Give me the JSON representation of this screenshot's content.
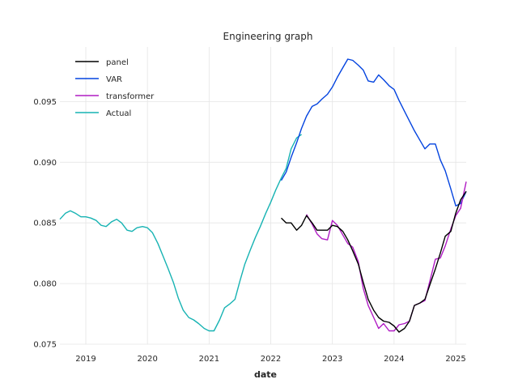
{
  "chart_data": {
    "type": "line",
    "title": "Engineering graph",
    "xlabel": "date",
    "ylabel": "",
    "xlim": [
      2018.58,
      2025.17
    ],
    "ylim": [
      0.075,
      0.0995
    ],
    "x_ticks": [
      2019,
      2020,
      2021,
      2022,
      2023,
      2024,
      2025
    ],
    "x_tick_labels": [
      "2019",
      "2020",
      "2021",
      "2022",
      "2023",
      "2024",
      "2025"
    ],
    "y_ticks": [
      0.075,
      0.08,
      0.085,
      0.09,
      0.095
    ],
    "y_tick_labels": [
      "0.075",
      "0.080",
      "0.085",
      "0.090",
      "0.095"
    ],
    "grid": true,
    "legend_position": "top-left",
    "series": [
      {
        "name": "panel",
        "color": "#000000",
        "points": [
          [
            2022.17,
            0.0854
          ],
          [
            2022.25,
            0.085
          ],
          [
            2022.33,
            0.085
          ],
          [
            2022.42,
            0.0844
          ],
          [
            2022.5,
            0.0848
          ],
          [
            2022.58,
            0.0856
          ],
          [
            2022.67,
            0.085
          ],
          [
            2022.75,
            0.0844
          ],
          [
            2022.83,
            0.0844
          ],
          [
            2022.92,
            0.0844
          ],
          [
            2023.0,
            0.0848
          ],
          [
            2023.08,
            0.0847
          ],
          [
            2023.17,
            0.0843
          ],
          [
            2023.25,
            0.0836
          ],
          [
            2023.33,
            0.0827
          ],
          [
            2023.42,
            0.0816
          ],
          [
            2023.5,
            0.0801
          ],
          [
            2023.58,
            0.0787
          ],
          [
            2023.67,
            0.0778
          ],
          [
            2023.75,
            0.0772
          ],
          [
            2023.83,
            0.0769
          ],
          [
            2023.92,
            0.0768
          ],
          [
            2024.0,
            0.0765
          ],
          [
            2024.08,
            0.076
          ],
          [
            2024.17,
            0.0763
          ],
          [
            2024.25,
            0.0769
          ],
          [
            2024.33,
            0.0782
          ],
          [
            2024.42,
            0.0784
          ],
          [
            2024.5,
            0.0787
          ],
          [
            2024.58,
            0.0799
          ],
          [
            2024.67,
            0.0812
          ],
          [
            2024.75,
            0.0825
          ],
          [
            2024.83,
            0.0839
          ],
          [
            2024.92,
            0.0843
          ],
          [
            2025.0,
            0.0858
          ],
          [
            2025.08,
            0.0869
          ],
          [
            2025.17,
            0.0876
          ]
        ]
      },
      {
        "name": "VAR",
        "color": "#0343df",
        "points": [
          [
            2022.17,
            0.0885
          ],
          [
            2022.25,
            0.0892
          ],
          [
            2022.33,
            0.0904
          ],
          [
            2022.42,
            0.0916
          ],
          [
            2022.5,
            0.0928
          ],
          [
            2022.58,
            0.0938
          ],
          [
            2022.67,
            0.0946
          ],
          [
            2022.75,
            0.0948
          ],
          [
            2022.83,
            0.0952
          ],
          [
            2022.92,
            0.0956
          ],
          [
            2023.0,
            0.0962
          ],
          [
            2023.08,
            0.097
          ],
          [
            2023.17,
            0.0978
          ],
          [
            2023.25,
            0.0985
          ],
          [
            2023.33,
            0.0984
          ],
          [
            2023.42,
            0.098
          ],
          [
            2023.5,
            0.0976
          ],
          [
            2023.58,
            0.0967
          ],
          [
            2023.67,
            0.0966
          ],
          [
            2023.75,
            0.0972
          ],
          [
            2023.83,
            0.0968
          ],
          [
            2023.92,
            0.0963
          ],
          [
            2024.0,
            0.096
          ],
          [
            2024.08,
            0.0951
          ],
          [
            2024.17,
            0.0942
          ],
          [
            2024.25,
            0.0934
          ],
          [
            2024.33,
            0.0926
          ],
          [
            2024.42,
            0.0918
          ],
          [
            2024.5,
            0.0911
          ],
          [
            2024.58,
            0.0915
          ],
          [
            2024.67,
            0.0915
          ],
          [
            2024.75,
            0.0902
          ],
          [
            2024.83,
            0.0893
          ],
          [
            2024.92,
            0.0878
          ],
          [
            2025.0,
            0.0864
          ],
          [
            2025.08,
            0.0866
          ],
          [
            2025.17,
            0.0876
          ]
        ]
      },
      {
        "name": "transformer",
        "color": "#b01cc4",
        "points": [
          [
            2022.58,
            0.0857
          ],
          [
            2022.67,
            0.0849
          ],
          [
            2022.75,
            0.0841
          ],
          [
            2022.83,
            0.0837
          ],
          [
            2022.92,
            0.0836
          ],
          [
            2023.0,
            0.0852
          ],
          [
            2023.08,
            0.0848
          ],
          [
            2023.17,
            0.084
          ],
          [
            2023.25,
            0.0833
          ],
          [
            2023.33,
            0.083
          ],
          [
            2023.42,
            0.0818
          ],
          [
            2023.5,
            0.0796
          ],
          [
            2023.58,
            0.0782
          ],
          [
            2023.67,
            0.0772
          ],
          [
            2023.75,
            0.0763
          ],
          [
            2023.83,
            0.0767
          ],
          [
            2023.92,
            0.0761
          ],
          [
            2024.0,
            0.0761
          ],
          [
            2024.08,
            0.0766
          ],
          [
            2024.17,
            0.0767
          ],
          [
            2024.25,
            0.0769
          ],
          [
            2024.33,
            0.0782
          ],
          [
            2024.42,
            0.0784
          ],
          [
            2024.5,
            0.0786
          ],
          [
            2024.58,
            0.0802
          ],
          [
            2024.67,
            0.082
          ],
          [
            2024.75,
            0.0821
          ],
          [
            2024.83,
            0.0831
          ],
          [
            2024.92,
            0.0845
          ],
          [
            2025.0,
            0.0856
          ],
          [
            2025.08,
            0.0862
          ],
          [
            2025.17,
            0.0884
          ]
        ]
      },
      {
        "name": "Actual",
        "color": "#17b3b3",
        "points": [
          [
            2018.58,
            0.0853
          ],
          [
            2018.67,
            0.0858
          ],
          [
            2018.75,
            0.086
          ],
          [
            2018.83,
            0.0858
          ],
          [
            2018.92,
            0.0855
          ],
          [
            2019.0,
            0.0855
          ],
          [
            2019.08,
            0.0854
          ],
          [
            2019.17,
            0.0852
          ],
          [
            2019.25,
            0.0848
          ],
          [
            2019.33,
            0.0847
          ],
          [
            2019.42,
            0.0851
          ],
          [
            2019.5,
            0.0853
          ],
          [
            2019.58,
            0.085
          ],
          [
            2019.67,
            0.0844
          ],
          [
            2019.75,
            0.0843
          ],
          [
            2019.83,
            0.0846
          ],
          [
            2019.92,
            0.0847
          ],
          [
            2020.0,
            0.0846
          ],
          [
            2020.08,
            0.0842
          ],
          [
            2020.17,
            0.0833
          ],
          [
            2020.25,
            0.0823
          ],
          [
            2020.33,
            0.0813
          ],
          [
            2020.42,
            0.0801
          ],
          [
            2020.5,
            0.0788
          ],
          [
            2020.58,
            0.0778
          ],
          [
            2020.67,
            0.0772
          ],
          [
            2020.75,
            0.077
          ],
          [
            2020.83,
            0.0767
          ],
          [
            2020.92,
            0.0763
          ],
          [
            2021.0,
            0.0761
          ],
          [
            2021.08,
            0.0761
          ],
          [
            2021.17,
            0.077
          ],
          [
            2021.25,
            0.078
          ],
          [
            2021.33,
            0.0783
          ],
          [
            2021.42,
            0.0787
          ],
          [
            2021.5,
            0.0802
          ],
          [
            2021.58,
            0.0816
          ],
          [
            2021.67,
            0.0828
          ],
          [
            2021.75,
            0.0838
          ],
          [
            2021.83,
            0.0847
          ],
          [
            2021.92,
            0.0858
          ],
          [
            2022.0,
            0.0867
          ],
          [
            2022.08,
            0.0877
          ],
          [
            2022.17,
            0.0887
          ],
          [
            2022.25,
            0.0895
          ],
          [
            2022.33,
            0.0911
          ],
          [
            2022.42,
            0.092
          ],
          [
            2022.5,
            0.0923
          ]
        ]
      }
    ]
  }
}
